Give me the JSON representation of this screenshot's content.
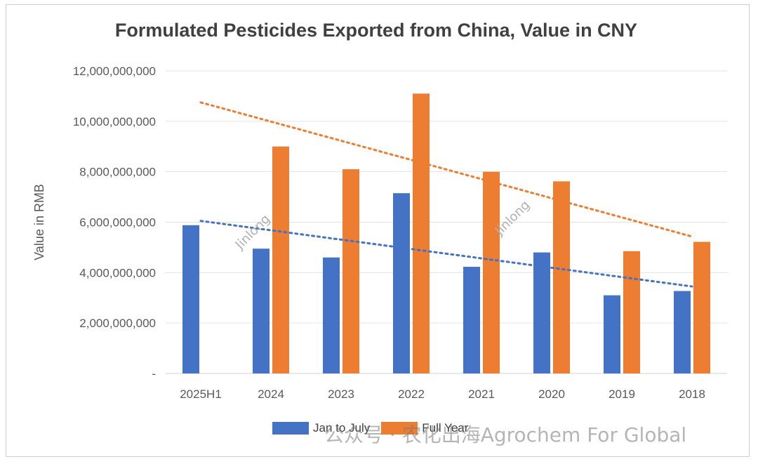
{
  "chart_data": {
    "type": "bar",
    "title": "Formulated Pesticides Exported from China, Value in CNY",
    "ylabel": "Value in RMB",
    "xlabel": "",
    "ylim": [
      0,
      12000000000
    ],
    "yticks": [
      0,
      2000000000,
      4000000000,
      6000000000,
      8000000000,
      10000000000,
      12000000000
    ],
    "ytick_labels": [
      "-",
      "2,000,000,000",
      "4,000,000,000",
      "6,000,000,000",
      "8,000,000,000",
      "10,000,000,000",
      "12,000,000,000"
    ],
    "categories": [
      "2025H1",
      "2024",
      "2023",
      "2022",
      "2021",
      "2020",
      "2019",
      "2018"
    ],
    "grid": true,
    "legend_position": "bottom",
    "series": [
      {
        "name": "Jan to July",
        "color": "#4472C4",
        "values": [
          5880000000,
          4950000000,
          4600000000,
          7150000000,
          4230000000,
          4800000000,
          3100000000,
          3270000000
        ]
      },
      {
        "name": "Full Year",
        "color": "#ED7D31",
        "values": [
          null,
          9000000000,
          8100000000,
          11100000000,
          8000000000,
          7620000000,
          4850000000,
          5220000000
        ]
      }
    ],
    "trendlines": [
      {
        "series": "Jan to July",
        "color": "#4472C4",
        "style": "dotted",
        "start": 6050000000,
        "end": 3450000000
      },
      {
        "series": "Full Year",
        "color": "#ED7D31",
        "style": "dotted",
        "start": 10750000000,
        "end": 5430000000
      }
    ]
  },
  "watermarks": {
    "stamp": "Jinlong",
    "footer": "公众号 · 农化出海Agrochem For Global"
  }
}
